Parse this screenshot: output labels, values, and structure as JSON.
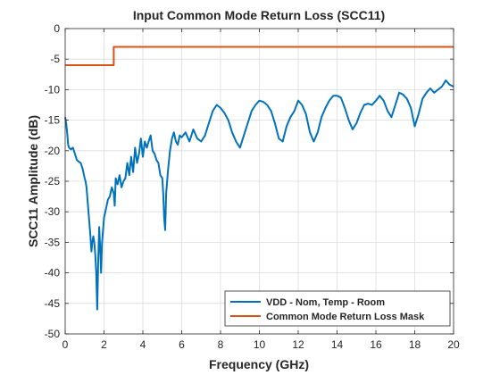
{
  "chart_data": {
    "type": "line",
    "title": "Input Common Mode Return Loss (SCC11)",
    "xlabel": "Frequency (GHz)",
    "ylabel": "SCC11 Amplitude (dB)",
    "xlim": [
      0,
      20
    ],
    "ylim": [
      -50,
      0
    ],
    "xticks": [
      0,
      2,
      4,
      6,
      8,
      10,
      12,
      14,
      16,
      18,
      20
    ],
    "yticks": [
      0,
      -5,
      -10,
      -15,
      -20,
      -25,
      -30,
      -35,
      -40,
      -45,
      -50
    ],
    "grid": true,
    "legend_position": "bottom-right",
    "series": [
      {
        "name": "VDD - Nom, Temp - Room",
        "color": "#0072BD",
        "x": [
          0,
          0.05,
          0.1,
          0.15,
          0.2,
          0.3,
          0.4,
          0.5,
          0.6,
          0.7,
          0.8,
          0.9,
          1.0,
          1.05,
          1.1,
          1.2,
          1.3,
          1.35,
          1.4,
          1.45,
          1.5,
          1.55,
          1.6,
          1.65,
          1.7,
          1.75,
          1.8,
          1.85,
          1.9,
          1.95,
          2.0,
          2.1,
          2.2,
          2.3,
          2.4,
          2.5,
          2.55,
          2.6,
          2.7,
          2.8,
          2.9,
          3.0,
          3.1,
          3.2,
          3.3,
          3.4,
          3.5,
          3.6,
          3.7,
          3.8,
          3.9,
          4.0,
          4.1,
          4.2,
          4.3,
          4.4,
          4.5,
          4.6,
          4.7,
          4.8,
          4.9,
          5.0,
          5.05,
          5.1,
          5.15,
          5.2,
          5.3,
          5.4,
          5.5,
          5.6,
          5.7,
          5.8,
          5.9,
          6.0,
          6.2,
          6.4,
          6.6,
          6.8,
          7.0,
          7.2,
          7.4,
          7.6,
          7.8,
          8.0,
          8.2,
          8.4,
          8.6,
          8.8,
          9.0,
          9.2,
          9.4,
          9.6,
          9.8,
          10.0,
          10.2,
          10.4,
          10.6,
          10.8,
          11.0,
          11.2,
          11.4,
          11.6,
          11.8,
          12.0,
          12.2,
          12.4,
          12.6,
          12.8,
          13.0,
          13.2,
          13.4,
          13.6,
          13.8,
          14.0,
          14.2,
          14.4,
          14.6,
          14.8,
          15.0,
          15.2,
          15.4,
          15.6,
          15.8,
          16.0,
          16.2,
          16.4,
          16.6,
          16.8,
          17.0,
          17.2,
          17.4,
          17.6,
          17.8,
          18.0,
          18.2,
          18.4,
          18.6,
          18.8,
          19.0,
          19.2,
          19.4,
          19.6,
          19.8,
          20.0
        ],
        "values": [
          -14.5,
          -15.5,
          -17,
          -19,
          -19.5,
          -19.8,
          -19.5,
          -20.5,
          -21.5,
          -21.8,
          -22,
          -23,
          -24.5,
          -25,
          -26,
          -30,
          -34,
          -36.5,
          -35,
          -34,
          -35,
          -37,
          -40,
          -46,
          -38,
          -32.5,
          -36,
          -40,
          -35,
          -33,
          -31,
          -29.5,
          -28,
          -27.5,
          -26,
          -27,
          -29,
          -24.5,
          -25.5,
          -24,
          -26,
          -25,
          -24.5,
          -22,
          -24,
          -21,
          -23.5,
          -19.5,
          -22,
          -20.5,
          -18,
          -21,
          -18.5,
          -19.5,
          -18.5,
          -17.5,
          -20,
          -20.5,
          -21.5,
          -22,
          -24,
          -24.5,
          -27,
          -31,
          -33,
          -27,
          -23,
          -20,
          -18,
          -17,
          -18.5,
          -19,
          -17.5,
          -17.8,
          -17,
          -18.5,
          -16.5,
          -18,
          -18.5,
          -17.5,
          -15.5,
          -13.5,
          -12.5,
          -13,
          -13.8,
          -15,
          -17,
          -18.5,
          -19.5,
          -17.5,
          -15.5,
          -13.5,
          -12.5,
          -11.8,
          -12,
          -12.5,
          -13.5,
          -15.5,
          -18,
          -18.5,
          -16,
          -14.5,
          -13.5,
          -11.8,
          -12.5,
          -14,
          -17,
          -18.5,
          -17,
          -14.5,
          -13,
          -11.8,
          -11,
          -11,
          -11.3,
          -13,
          -15,
          -16.5,
          -15.5,
          -13.8,
          -12.5,
          -12.3,
          -12.5,
          -11.8,
          -11,
          -11.8,
          -13.5,
          -14.5,
          -12.5,
          -10.5,
          -10.8,
          -11.5,
          -13,
          -16,
          -14,
          -11.5,
          -10.5,
          -9.8,
          -10.5,
          -10,
          -9.5,
          -8.5,
          -9.2,
          -9.5
        ]
      },
      {
        "name": "Common Mode Return Loss Mask",
        "color": "#D95319",
        "x": [
          0,
          2.5,
          2.5,
          20
        ],
        "values": [
          -6,
          -6,
          -3,
          -3
        ]
      }
    ]
  }
}
